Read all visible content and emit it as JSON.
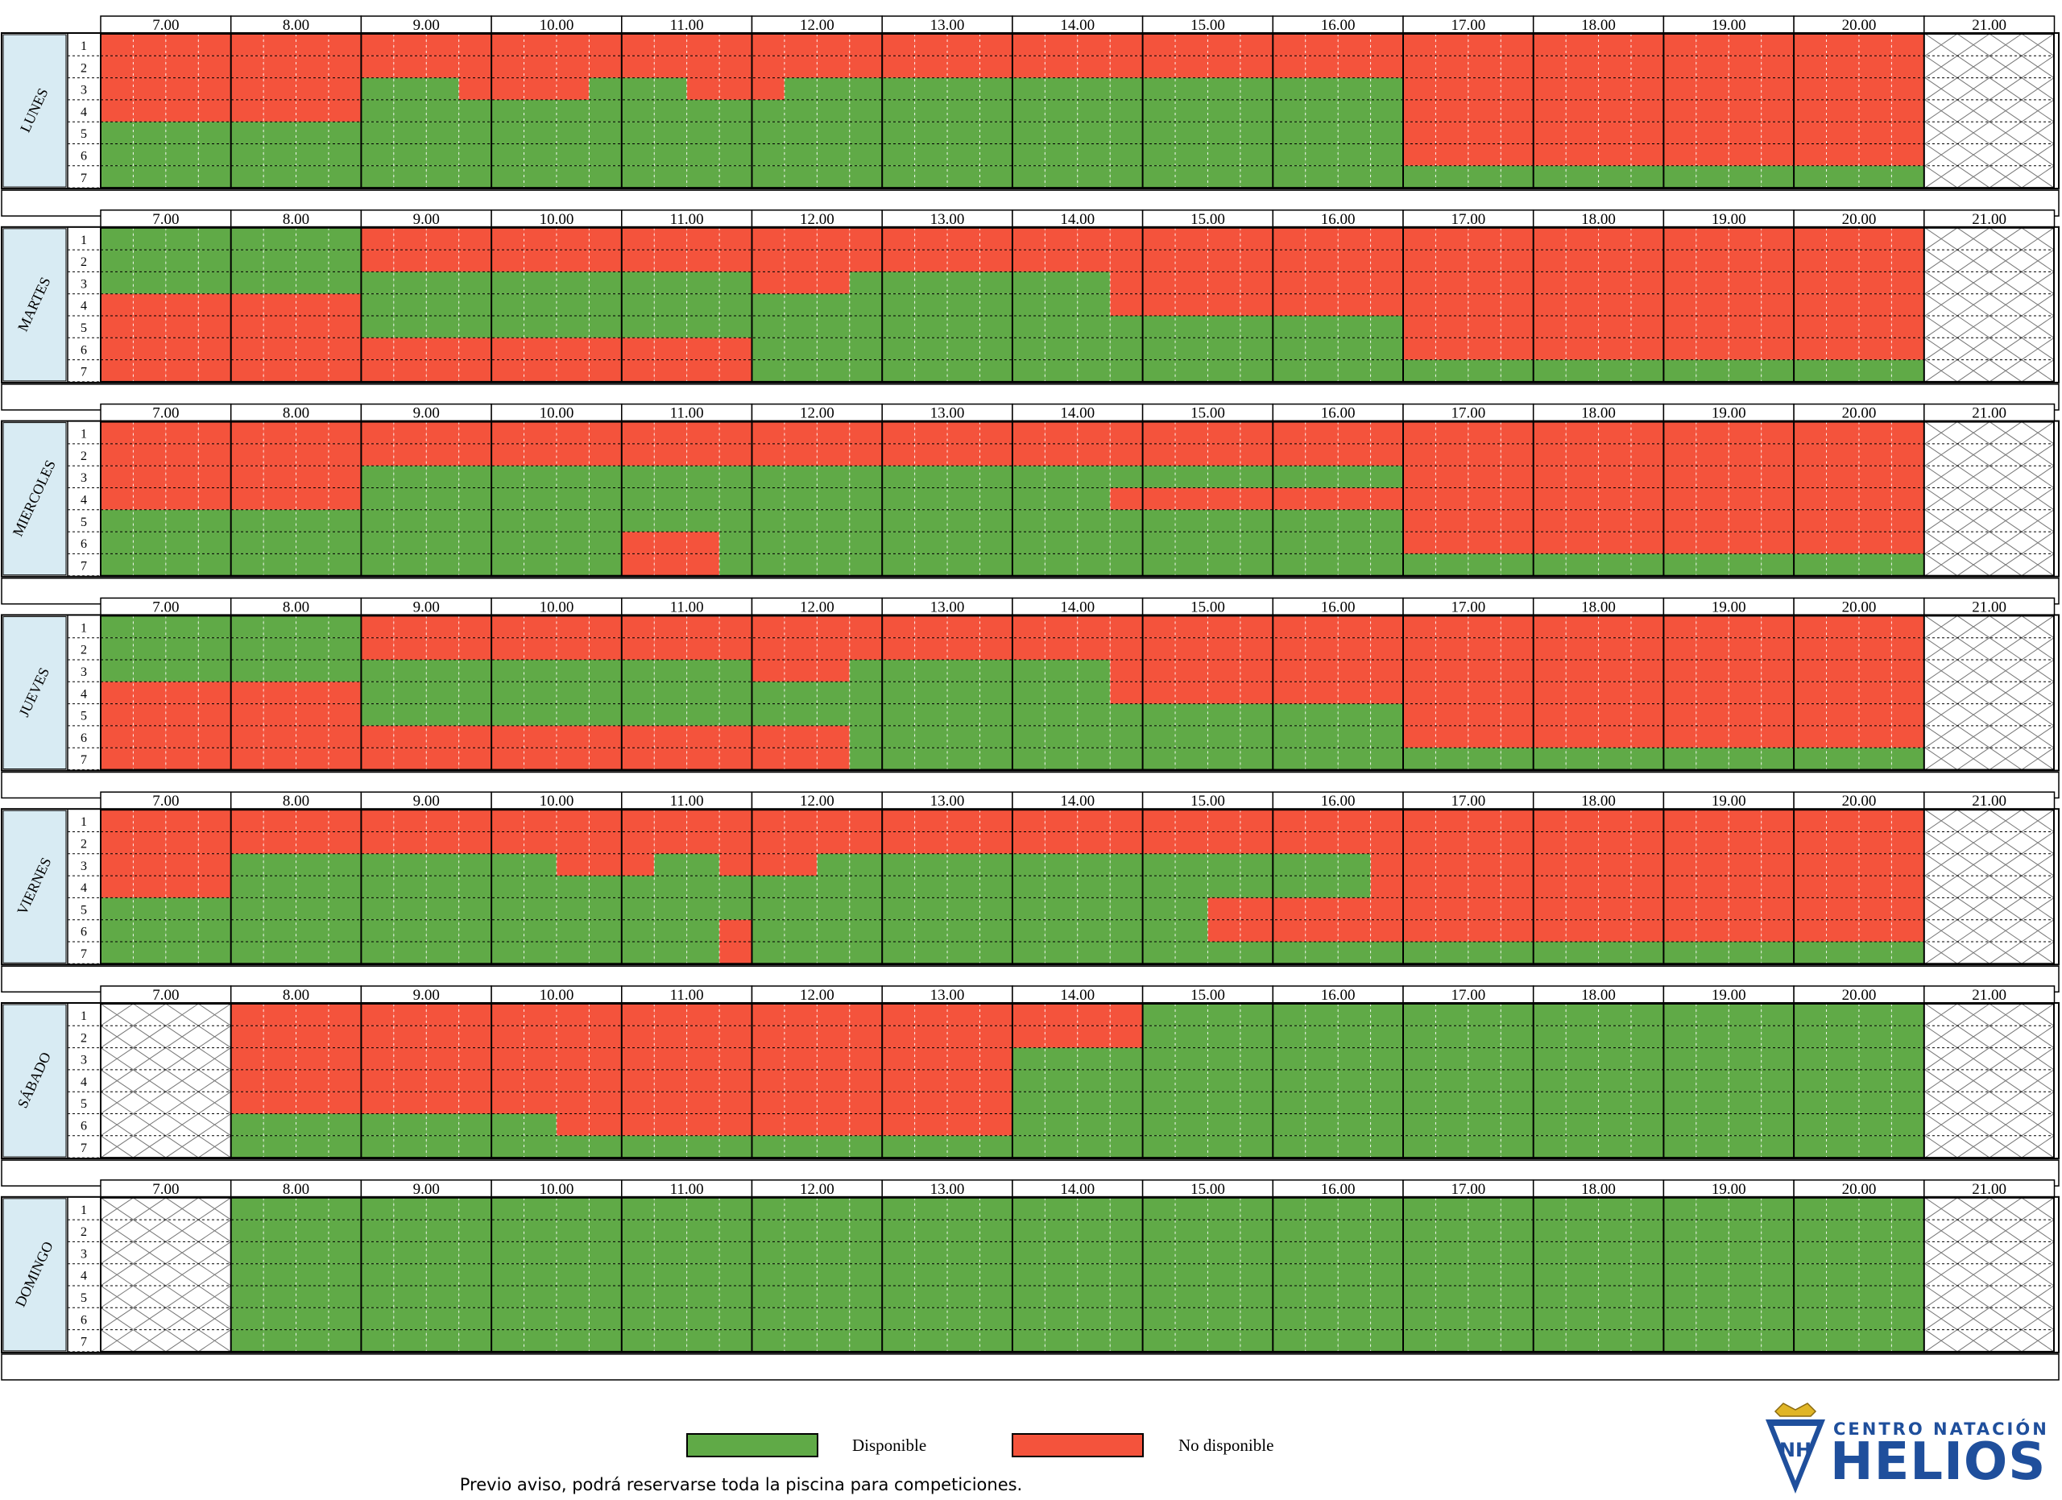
{
  "hours": [
    "7.00",
    "8.00",
    "9.00",
    "10.00",
    "11.00",
    "12.00",
    "13.00",
    "14.00",
    "15.00",
    "16.00",
    "17.00",
    "18.00",
    "19.00",
    "20.00",
    "21.00"
  ],
  "lanes": [
    "1",
    "2",
    "3",
    "4",
    "5",
    "6",
    "7"
  ],
  "colors": {
    "available": "#60aa47",
    "unavailable": "#f4533c",
    "day_panel": "#d8ebf3",
    "blocked": "#ffffff",
    "logo_blue": "#1f4f9c"
  },
  "cell_codes": {
    "G": "available",
    "R": "unavailable",
    "X": "blocked"
  },
  "days": [
    {
      "name": "LUNES",
      "rows": [
        "RRRRRRRRRRRRRRRRRRRRRRRRRRRRRRRRRRRRRRRRRRRRRRRRRRRRRRRRX",
        "RRRRRRRRRRRRRRRRRRRRRRRRRRRRRRRRRRRRRRRRRRRRRRRRRRRRRRRRX",
        "RRRRRRRRGGGRRRRGGGRRRGGGGGGGGGGGGGGGGGGGRRRRRRRRRRRRRRRRX",
        "RRRRRRRRGGGGGGGGGGGGGGGGGGGGGGGGGGGGGGGGRRRRRRRRRRRRRRRRX",
        "GGGGGGGGGGGGGGGGGGGGGGGGGGGGGGGGGGGGGGGGRRRRRRRRRRRRRRRRX",
        "GGGGGGGGGGGGGGGGGGGGGGGGGGGGGGGGGGGGGGGGRRRRRRRRRRRRRRRRX",
        "GGGGGGGGGGGGGGGGGGGGGGGGGGGGGGGGGGGGGGGGGGGGGGGGGGGGGGGGX"
      ]
    },
    {
      "name": "MARTES",
      "rows": [
        "GGGGGGGGRRRRRRRRRRRRRRRRRRRRRRRRRRRRRRRRRRRRRRRRRRRRRRRRX",
        "GGGGGGGGRRRRRRRRRRRRRRRRRRRRRRRRRRRRRRRRRRRRRRRRRRRRRRRRX",
        "GGGGGGGGGGGGGGGGGGGGRRRGGGGGGGGRRRRRRRRRRRRRRRRRRRRRRRRRX",
        "RRRRRRRRGGGGGGGGGGGGGGGGGGGGGGGRRRRRRRRRRRRRRRRRRRRRRRRRX",
        "RRRRRRRRGGGGGGGGGGGGGGGGGGGGGGGGGGGGGGGGRRRRRRRRRRRRRRRRX",
        "RRRRRRRRRRRRRRRRRRRRGGGGGGGGGGGGGGGGGGGGRRRRRRRRRRRRRRRRX",
        "RRRRRRRRRRRRRRRRRRRRGGGGGGGGGGGGGGGGGGGGGGGGGGGGGGGGGGGGX"
      ]
    },
    {
      "name": "MIERCOLES",
      "rows": [
        "RRRRRRRRRRRRRRRRRRRRRRRRRRRRRRRRRRRRRRRRRRRRRRRRRRRRRRRRX",
        "RRRRRRRRRRRRRRRRRRRRRRRRRRRRRRRRRRRRRRRRRRRRRRRRRRRRRRRRX",
        "RRRRRRRRGGGGGGGGGGGGGGGGGGGGGGGGGGGGGGGGRRRRRRRRRRRRRRRRX",
        "RRRRRRRRGGGGGGGGGGGGGGGGGGGGGGGRRRRRRRRRRRRRRRRRRRRRRRRRX",
        "GGGGGGGGGGGGGGGGGGGGGGGGGGGGGGGGGGGGGGGGRRRRRRRRRRRRRRRRX",
        "GGGGGGGGGGGGGGGGRRRGGGGGGGGGGGGGGGGGGGGGRRRRRRRRRRRRRRRRX",
        "GGGGGGGGGGGGGGGGRRRGGGGGGGGGGGGGGGGGGGGGGGGGGGGGGGGGGGGGX"
      ]
    },
    {
      "name": "JUEVES",
      "rows": [
        "GGGGGGGGRRRRRRRRRRRRRRRRRRRRRRRRRRRRRRRRRRRRRRRRRRRRRRRRX",
        "GGGGGGGGRRRRRRRRRRRRRRRRRRRRRRRRRRRRRRRRRRRRRRRRRRRRRRRRX",
        "GGGGGGGGGGGGGGGGGGGGRRRGGGGGGGGRRRRRRRRRRRRRRRRRRRRRRRRRX",
        "RRRRRRRRGGGGGGGGGGGGGGGGGGGGGGGRRRRRRRRRRRRRRRRRRRRRRRRRX",
        "RRRRRRRRGGGGGGGGGGGGGGGGGGGGGGGGGGGGGGGGRRRRRRRRRRRRRRRRX",
        "RRRRRRRRRRRRRRRRRRRRRRRGGGGGGGGGGGGGGGGGRRRRRRRRRRRRRRRRX",
        "RRRRRRRRRRRRRRRRRRRRRRRGGGGGGGGGGGGGGGGGGGGGGGGGGGGGGGGGX"
      ]
    },
    {
      "name": "VIERNES",
      "rows": [
        "RRRRRRRRRRRRRRRRRRRRRRRRRRRRRRRRRRRRRRRRRRRRRRRRRRRRRRRRX",
        "RRRRRRRRRRRRRRRRRRRRRRRRRRRRRRRRRRRRRRRRRRRRRRRRRRRRRRRRX",
        "RRRRGGGGGGGGGGRRRGGRRRGGGGGGGGGGGGGGGGGRRRRRRRRRRRRRRRRRX",
        "RRRRGGGGGGGGGGGGGGGGGGGGGGGGGGGGGGGGGGGRRRRRRRRRRRRRRRRRX",
        "GGGGGGGGGGGGGGGGGGGGGGGGGGGGGGGGGGRRRRRRRRRRRRRRRRRRRRRRX",
        "GGGGGGGGGGGGGGGGGGGRGGGGGGGGGGGGGGRRRRRRRRRRRRRRRRRRRRRRX",
        "GGGGGGGGGGGGGGGGGGGRGGGGGGGGGGGGGGGGGGGGGGGGGGGGGGGGGGGGX"
      ]
    },
    {
      "name": "SÁBADO",
      "rows": [
        "XXXXRRRRRRRRRRRRRRRRRRRRRRRRRRRRGGGGGGGGGGGGGGGGGGGGGGGGX",
        "XXXXRRRRRRRRRRRRRRRRRRRRRRRRRRRRGGGGGGGGGGGGGGGGGGGGGGGGX",
        "XXXXRRRRRRRRRRRRRRRRRRRRRRRRGGGGGGGGGGGGGGGGGGGGGGGGGGGGX",
        "XXXXRRRRRRRRRRRRRRRRRRRRRRRRGGGGGGGGGGGGGGGGGGGGGGGGGGGGX",
        "XXXXRRRRRRRRRRRRRRRRRRRRRRRRGGGGGGGGGGGGGGGGGGGGGGGGGGGGX",
        "XXXXGGGGGGGGGGRRRRRRRRRRRRRRGGGGGGGGGGGGGGGGGGGGGGGGGGGGX",
        "XXXXGGGGGGGGGGGGGGGGGGGGGGGGGGGGGGGGGGGGGGGGGGGGGGGGGGGGX"
      ]
    },
    {
      "name": "DOMINGO",
      "rows": [
        "XXXXGGGGGGGGGGGGGGGGGGGGGGGGGGGGGGGGGGGGGGGGGGGGGGGGGGGGX",
        "XXXXGGGGGGGGGGGGGGGGGGGGGGGGGGGGGGGGGGGGGGGGGGGGGGGGGGGGX",
        "XXXXGGGGGGGGGGGGGGGGGGGGGGGGGGGGGGGGGGGGGGGGGGGGGGGGGGGGX",
        "XXXXGGGGGGGGGGGGGGGGGGGGGGGGGGGGGGGGGGGGGGGGGGGGGGGGGGGGX",
        "XXXXGGGGGGGGGGGGGGGGGGGGGGGGGGGGGGGGGGGGGGGGGGGGGGGGGGGGX",
        "XXXXGGGGGGGGGGGGGGGGGGGGGGGGGGGGGGGGGGGGGGGGGGGGGGGGGGGGX",
        "XXXXGGGGGGGGGGGGGGGGGGGGGGGGGGGGGGGGGGGGGGGGGGGGGGGGGGGGX"
      ]
    }
  ],
  "legend": {
    "available_label": "Disponible",
    "unavailable_label": "No disponible"
  },
  "note": "Previo aviso, podrá reservarse toda la piscina para competiciones.",
  "logo": {
    "line1": "CENTRO NATACIÓN",
    "line2": "HELIOS",
    "icon": "helios-crest-icon"
  }
}
